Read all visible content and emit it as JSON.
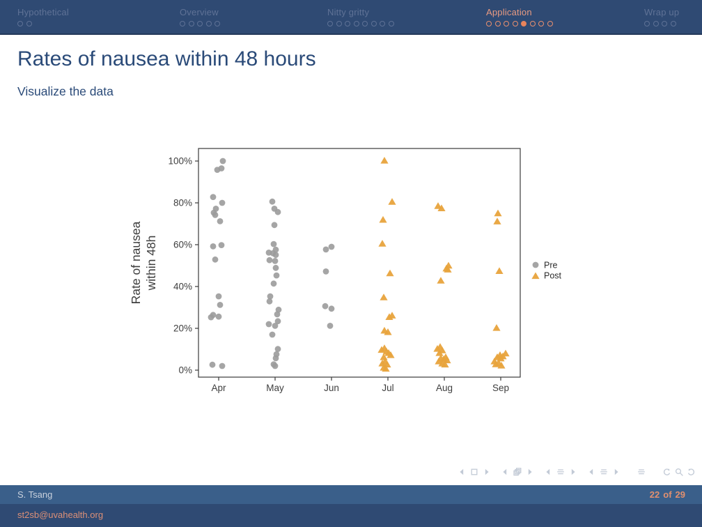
{
  "slide": {
    "title": "Rates of nausea within 48 hours",
    "subtitle": "Visualize the data"
  },
  "header": {
    "sections": [
      {
        "label": "Hypothetical",
        "dots": 2,
        "active": false,
        "current_dot": -1
      },
      {
        "label": "Overview",
        "dots": 5,
        "active": false,
        "current_dot": -1
      },
      {
        "label": "Nitty gritty",
        "dots": 8,
        "active": false,
        "current_dot": -1
      },
      {
        "label": "Application",
        "dots": 8,
        "active": true,
        "current_dot": 4
      },
      {
        "label": "Wrap up",
        "dots": 4,
        "active": false,
        "current_dot": -1
      }
    ]
  },
  "footer": {
    "author": "S. Tsang",
    "page_current": "22",
    "page_sep": "of",
    "page_total": "29",
    "email": "st2sb@uvahealth.org"
  },
  "bottom_nav": {
    "groups": [
      {
        "name": "slide-nav",
        "icons": [
          "arrow-left",
          "square",
          "arrow-right"
        ],
        "spaced": false
      },
      {
        "name": "frame-nav",
        "icons": [
          "arrow-left",
          "frames",
          "arrow-right"
        ],
        "spaced": false
      },
      {
        "name": "subsection-nav",
        "icons": [
          "arrow-left",
          "lines",
          "arrow-right"
        ],
        "spaced": false
      },
      {
        "name": "section-nav",
        "icons": [
          "arrow-left",
          "lines",
          "arrow-right"
        ],
        "spaced": false
      },
      {
        "name": "appendix-nav",
        "icons": [
          "lines"
        ],
        "spaced": true
      },
      {
        "name": "history-nav",
        "icons": [
          "undo",
          "magnifier",
          "redo"
        ],
        "spaced": true
      }
    ]
  },
  "colors": {
    "header_bg": "#2F4A73",
    "header_rule": "#24395A",
    "nav_inactive": "#5F7296",
    "nav_active_text": "#E99B82",
    "nav_active_dot": "#E8845C",
    "title_blue": "#2A4A78",
    "footer_bar1_bg": "#3A5F8A",
    "footer_author": "#C9D1DD",
    "page_number": "#E2906F",
    "email": "#DD9077",
    "nav_icon": "#C2CAD6",
    "axis_text": "#3E3E3E",
    "pre_gray": "#9B9B9B",
    "post_orange": "#E8A33C"
  },
  "chart_data": {
    "type": "scatter",
    "title": "",
    "xlabel": "",
    "ylabel": "Rate of nausea within 48h",
    "ylabel_lines": [
      "Rate of nausea",
      "within 48h"
    ],
    "x_categories": [
      "Apr",
      "May",
      "Jun",
      "Jul",
      "Aug",
      "Sep"
    ],
    "y_ticks": [
      "0%",
      "20%",
      "40%",
      "60%",
      "80%",
      "100%"
    ],
    "ylim": [
      0,
      100
    ],
    "grid": false,
    "legend": {
      "position": "right",
      "entries": [
        {
          "label": "Pre",
          "marker": "circle",
          "color": "#9B9B9B"
        },
        {
          "label": "Post",
          "marker": "triangle",
          "color": "#E8A33C"
        }
      ]
    },
    "point_format": "[x_jitter_px, rate_percent]",
    "series": [
      {
        "name": "Pre",
        "marker": "circle",
        "color": "#9B9B9B",
        "points_by_month": {
          "Apr": [
            [
              6,
              100
            ],
            [
              4,
              96.5
            ],
            [
              -2,
              95.8
            ],
            [
              -8,
              82.8
            ],
            [
              5,
              80
            ],
            [
              -4,
              77.2
            ],
            [
              -7,
              75.3
            ],
            [
              -5,
              74.2
            ],
            [
              2,
              71.2
            ],
            [
              4,
              59.8
            ],
            [
              -8,
              59.2
            ],
            [
              -5,
              52.9
            ],
            [
              0,
              35.3
            ],
            [
              2,
              31.2
            ],
            [
              -8,
              26.4
            ],
            [
              -11,
              25.3
            ],
            [
              0,
              25.6
            ],
            [
              -9,
              2.6
            ],
            [
              5,
              2
            ]
          ],
          "May": [
            [
              -4,
              80.6
            ],
            [
              -1,
              77.2
            ],
            [
              4,
              75.6
            ],
            [
              -1,
              69.4
            ],
            [
              -2,
              60.3
            ],
            [
              1,
              57.6
            ],
            [
              -9,
              56.2
            ],
            [
              -3,
              55.9
            ],
            [
              1,
              55.1
            ],
            [
              -8,
              52.6
            ],
            [
              0,
              52.2
            ],
            [
              1,
              48.9
            ],
            [
              2,
              45.3
            ],
            [
              -2,
              41.4
            ],
            [
              -7,
              35.3
            ],
            [
              -8,
              32.9
            ],
            [
              5,
              28.9
            ],
            [
              3,
              26.7
            ],
            [
              4,
              23.4
            ],
            [
              -9,
              22
            ],
            [
              0,
              21.2
            ],
            [
              -4,
              17
            ],
            [
              4,
              10.1
            ],
            [
              2,
              7.6
            ],
            [
              1,
              5.7
            ],
            [
              -2,
              2.8
            ],
            [
              0,
              2
            ]
          ],
          "Jun": [
            [
              0,
              59
            ],
            [
              -8,
              57.7
            ],
            [
              -8,
              47.2
            ],
            [
              -9,
              30.6
            ],
            [
              0,
              29.4
            ],
            [
              -2,
              21.2
            ]
          ]
        }
      },
      {
        "name": "Post",
        "marker": "triangle",
        "color": "#E8A33C",
        "points_by_month": {
          "Jul": [
            [
              -5,
              100
            ],
            [
              6,
              80.3
            ],
            [
              -7,
              71.7
            ],
            [
              -8,
              60.3
            ],
            [
              3,
              46.1
            ],
            [
              -6,
              34.6
            ],
            [
              6,
              25.9
            ],
            [
              2,
              25.2
            ],
            [
              -5,
              18.7
            ],
            [
              0,
              18
            ],
            [
              -5,
              10.3
            ],
            [
              -9,
              9.5
            ],
            [
              -2,
              8.7
            ],
            [
              1,
              8
            ],
            [
              4,
              7
            ],
            [
              -6,
              6
            ],
            [
              -4,
              4
            ],
            [
              -8,
              3
            ],
            [
              -1,
              2.5
            ],
            [
              -6,
              1
            ],
            [
              -3,
              0.5
            ]
          ],
          "Aug": [
            [
              -9,
              78.3
            ],
            [
              -4,
              77.2
            ],
            [
              6,
              49.8
            ],
            [
              3,
              48.4
            ],
            [
              5,
              47.9
            ],
            [
              -5,
              42.6
            ],
            [
              -6,
              10.9
            ],
            [
              -10,
              10
            ],
            [
              -3,
              9.3
            ],
            [
              -7,
              8
            ],
            [
              2,
              6
            ],
            [
              -5,
              5.5
            ],
            [
              -1,
              5
            ],
            [
              4,
              4.5
            ],
            [
              -8,
              4
            ],
            [
              -3,
              3
            ],
            [
              1,
              2.5
            ]
          ],
          "Sep": [
            [
              -4,
              74.8
            ],
            [
              -5,
              70.9
            ],
            [
              -2,
              47.2
            ],
            [
              -6,
              20
            ],
            [
              7,
              7.8
            ],
            [
              -1,
              7
            ],
            [
              3,
              6.4
            ],
            [
              -5,
              6
            ],
            [
              0,
              5.4
            ],
            [
              -9,
              4
            ],
            [
              -3,
              3.2
            ],
            [
              -7,
              2.6
            ],
            [
              1,
              2
            ]
          ]
        }
      }
    ]
  }
}
